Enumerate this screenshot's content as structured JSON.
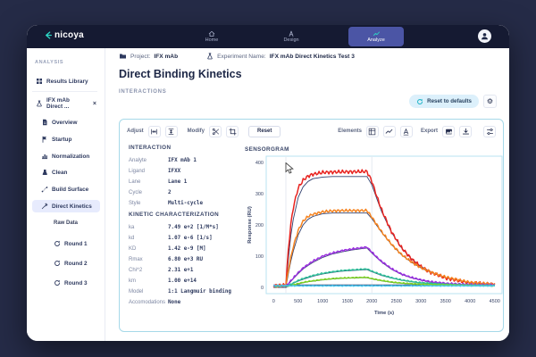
{
  "app": {
    "logo_text": "nicoya",
    "nav": [
      {
        "label": "Home"
      },
      {
        "label": "Design"
      },
      {
        "label": "Analyze",
        "active": true
      }
    ]
  },
  "breadcrumb": {
    "project_label": "Project:",
    "project_value": "IFX mAb",
    "experiment_label": "Experiment Name:",
    "experiment_value": "IFX mAb Direct Kinetics Test 3"
  },
  "page": {
    "title": "Direct Binding Kinetics",
    "section": "INTERACTIONS",
    "reset_defaults": "Reset to defaults"
  },
  "sidebar": {
    "header": "ANALYSIS",
    "results_library": "Results Library",
    "experiment": "IFX mAb Direct ...",
    "items": [
      {
        "label": "Overview"
      },
      {
        "label": "Startup"
      },
      {
        "label": "Normalization"
      },
      {
        "label": "Clean"
      },
      {
        "label": "Build Surface"
      },
      {
        "label": "Direct Kinetics",
        "active": true
      }
    ],
    "raw_data_label": "Raw Data",
    "rounds": [
      "Round 1",
      "Round 2",
      "Round 3"
    ]
  },
  "toolbar": {
    "adjust_label": "Adjust",
    "modify_label": "Modify",
    "reset_label": "Reset",
    "elements_label": "Elements",
    "export_label": "Export"
  },
  "interaction": {
    "header": "INTERACTION",
    "rows": [
      {
        "label": "Analyte",
        "value": "IFX mAb 1"
      },
      {
        "label": "Ligand",
        "value": "IFXX"
      },
      {
        "label": "Lane",
        "value": "Lane 1"
      },
      {
        "label": "Cycle",
        "value": "2"
      },
      {
        "label": "Style",
        "value": "Multi-cycle"
      }
    ]
  },
  "kinetics": {
    "header": "KINETIC CHARACTERIZATION",
    "rows": [
      {
        "label": "ka",
        "value": "7.49 e+2 [1/M*s]"
      },
      {
        "label": "kd",
        "value": "1.07 e-6 [1/s]"
      },
      {
        "label": "KD",
        "value": "1.42 e-9 [M]"
      },
      {
        "label": "Rmax",
        "value": "6.80 e+3 RU"
      },
      {
        "label": "Chi^2",
        "value": "2.31 e+1"
      },
      {
        "label": "km",
        "value": "1.00 e+14"
      },
      {
        "label": "Model",
        "value": "1:1 Langmuir binding"
      },
      {
        "label": "Accomodations",
        "value": "None"
      }
    ]
  },
  "colors": {
    "accent_teal": "#2cd5c4",
    "active_tab": "#4b55a5",
    "panel_border": "#a6d9e9",
    "fit_line": "#31406e"
  },
  "chart_data": {
    "type": "line",
    "title": "SENSORGRAM",
    "xlabel": "Time (s)",
    "ylabel": "Response (RU)",
    "xlim": [
      -150,
      4650
    ],
    "ylim": [
      -20,
      420
    ],
    "xticks": [
      0,
      500,
      1000,
      1500,
      2000,
      2500,
      3000,
      3500,
      4000,
      4500
    ],
    "yticks": [
      0,
      100,
      200,
      300,
      400
    ],
    "gridlines_x": [
      250,
      2000
    ],
    "legend": "none",
    "x": [
      0,
      150,
      250,
      300,
      350,
      400,
      500,
      600,
      700,
      800,
      1000,
      1200,
      1400,
      1600,
      1800,
      1900,
      2000,
      2100,
      2200,
      2400,
      2600,
      2800,
      3000,
      3200,
      3500,
      4000,
      4500
    ],
    "series": [
      {
        "name": "fit-cycle-1",
        "role": "fit",
        "color": "#31406e",
        "values": [
          0,
          0,
          0,
          90,
          165,
          218,
          288,
          322,
          339,
          348,
          353,
          355,
          355,
          355,
          355,
          355,
          328,
          284,
          242,
          176,
          127,
          92,
          67,
          49,
          31,
          15,
          10
        ]
      },
      {
        "name": "fit-cycle-2",
        "role": "fit",
        "color": "#31406e",
        "values": [
          0,
          0,
          0,
          45,
          83,
          116,
          168,
          200,
          218,
          227,
          236,
          238,
          238,
          238,
          238,
          238,
          220,
          198,
          176,
          137,
          105,
          81,
          62,
          48,
          32,
          15,
          9
        ]
      },
      {
        "name": "fit-cycle-3",
        "role": "fit",
        "color": "#31406e",
        "values": [
          0,
          0,
          0,
          10,
          19,
          28,
          44,
          59,
          70,
          80,
          96,
          107,
          114,
          120,
          124,
          126,
          110,
          95,
          81,
          58,
          42,
          31,
          23,
          17,
          12,
          8,
          7
        ]
      },
      {
        "name": "fit-cycle-4",
        "role": "fit",
        "color": "#31406e",
        "values": [
          0,
          0,
          0,
          5,
          9,
          13,
          20,
          26,
          31,
          36,
          43,
          48,
          52,
          54,
          56,
          57,
          50,
          44,
          38,
          30,
          23,
          18,
          14,
          12,
          9,
          6,
          5
        ]
      },
      {
        "name": "fit-cycle-5",
        "role": "fit",
        "color": "#31406e",
        "values": [
          0,
          0,
          0,
          3,
          5,
          7,
          11,
          15,
          18,
          20,
          24,
          27,
          29,
          30,
          31,
          31,
          27,
          24,
          21,
          16,
          13,
          11,
          9,
          8,
          7,
          5,
          4
        ]
      },
      {
        "name": "fit-cycle-6",
        "role": "fit",
        "color": "#31406e",
        "values": [
          8,
          8,
          8,
          8,
          8,
          8,
          8,
          8,
          8,
          8,
          8,
          8,
          8,
          8,
          8,
          8,
          8,
          8,
          8,
          8,
          8,
          8,
          8,
          8,
          8,
          8,
          8
        ]
      },
      {
        "name": "cycle-1",
        "role": "data",
        "color": "#e8231f",
        "values": [
          5,
          5,
          8,
          120,
          200,
          255,
          318,
          343,
          356,
          362,
          368,
          369,
          370,
          370,
          371,
          371,
          340,
          292,
          248,
          178,
          128,
          92,
          66,
          48,
          30,
          14,
          10
        ]
      },
      {
        "name": "cycle-2",
        "role": "data",
        "color": "#f5831f",
        "values": [
          5,
          5,
          6,
          55,
          95,
          130,
          182,
          212,
          227,
          234,
          242,
          245,
          246,
          246,
          246,
          246,
          225,
          201,
          178,
          138,
          106,
          82,
          63,
          49,
          33,
          16,
          10
        ]
      },
      {
        "name": "cycle-3",
        "role": "data",
        "color": "#9b30e0",
        "values": [
          4,
          4,
          5,
          12,
          21,
          30,
          47,
          62,
          73,
          84,
          100,
          110,
          118,
          123,
          127,
          129,
          113,
          97,
          83,
          60,
          43,
          32,
          24,
          18,
          13,
          9,
          8
        ]
      },
      {
        "name": "cycle-4",
        "role": "data",
        "color": "#2fbf9a",
        "values": [
          4,
          4,
          5,
          6,
          10,
          14,
          22,
          28,
          33,
          38,
          45,
          50,
          54,
          56,
          58,
          59,
          52,
          46,
          40,
          31,
          24,
          19,
          15,
          13,
          10,
          7,
          6
        ]
      },
      {
        "name": "cycle-5",
        "role": "data",
        "color": "#7ed321",
        "values": [
          4,
          4,
          4,
          4,
          6,
          8,
          12,
          16,
          19,
          21,
          25,
          28,
          30,
          31,
          32,
          32,
          28,
          25,
          22,
          17,
          14,
          12,
          10,
          9,
          8,
          6,
          5
        ]
      },
      {
        "name": "cycle-6",
        "role": "data",
        "color": "#45c8f1",
        "values": [
          5,
          5,
          5,
          5,
          5,
          5,
          5,
          5,
          5,
          5,
          5,
          5,
          5,
          5,
          5,
          5,
          5,
          5,
          5,
          5,
          5,
          5,
          5,
          5,
          5,
          5,
          5
        ]
      }
    ]
  }
}
